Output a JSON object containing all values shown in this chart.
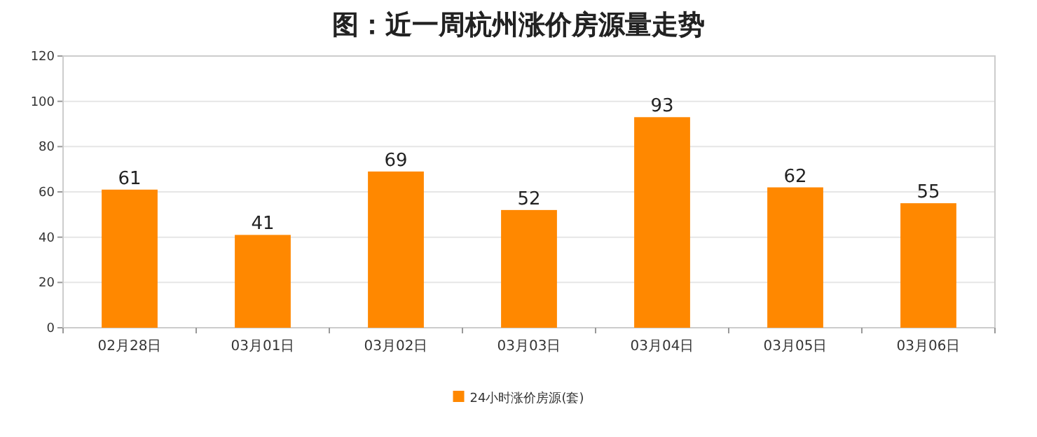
{
  "chart_data": {
    "type": "bar",
    "title": "图：近一周杭州涨价房源量走势",
    "categories": [
      "02月28日",
      "03月01日",
      "03月02日",
      "03月03日",
      "03月04日",
      "03月05日",
      "03月06日"
    ],
    "series": [
      {
        "name": "24小时涨价房源(套)",
        "color": "#ff8800",
        "values": [
          61,
          41,
          69,
          52,
          93,
          62,
          55
        ]
      }
    ],
    "ylim": [
      0,
      120
    ],
    "yticks": [
      0,
      20,
      40,
      60,
      80,
      100,
      120
    ],
    "grid": "y",
    "data_labels": true,
    "legend": "bottom"
  }
}
